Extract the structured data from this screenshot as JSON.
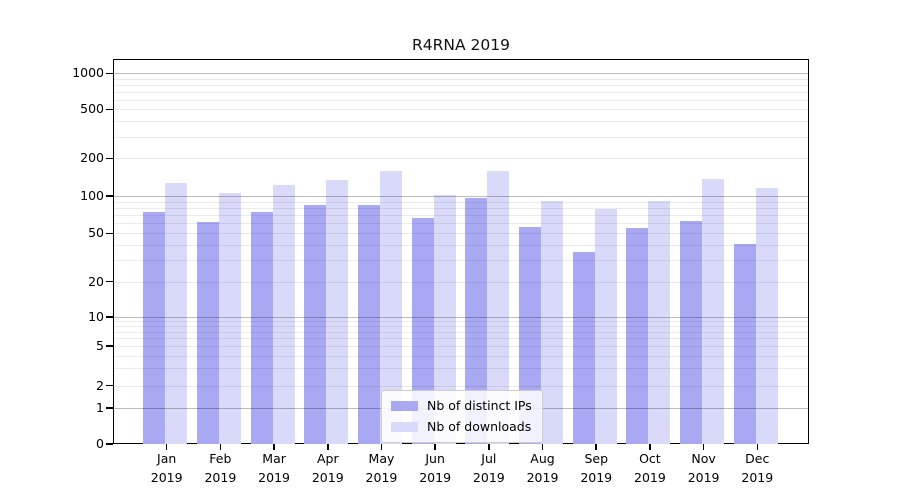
{
  "title": "R4RNA 2019",
  "legend": {
    "items": [
      {
        "label": "Nb of distinct IPs",
        "color": "#a8a8f3"
      },
      {
        "label": "Nb of downloads",
        "color": "#d9d9fa"
      }
    ]
  },
  "colors": {
    "bar_ips": "#a8a8f3",
    "bar_downloads": "#d9d9fa",
    "axis": "#000000",
    "text": "#000000",
    "legend_border": "#cccccc"
  },
  "chart_data": {
    "type": "bar",
    "title": "R4RNA 2019",
    "categories": [
      "Jan 2019",
      "Feb 2019",
      "Mar 2019",
      "Apr 2019",
      "May 2019",
      "Jun 2019",
      "Jul 2019",
      "Aug 2019",
      "Sep 2019",
      "Oct 2019",
      "Nov 2019",
      "Dec 2019"
    ],
    "series": [
      {
        "name": "Nb of distinct IPs",
        "color_key": "bar_ips",
        "values": [
          74,
          62,
          74,
          84,
          84,
          66,
          97,
          56,
          35,
          55,
          63,
          41
        ]
      },
      {
        "name": "Nb of downloads",
        "color_key": "bar_downloads",
        "values": [
          126,
          106,
          122,
          134,
          159,
          102,
          159,
          92,
          78,
          92,
          136,
          116
        ]
      }
    ],
    "yscale": "symlog",
    "yticks": [
      0,
      1,
      2,
      5,
      10,
      20,
      50,
      100,
      200,
      500,
      1000
    ],
    "ylim": [
      0,
      1000
    ],
    "grid": "on",
    "legend_position": "bottom-center"
  }
}
